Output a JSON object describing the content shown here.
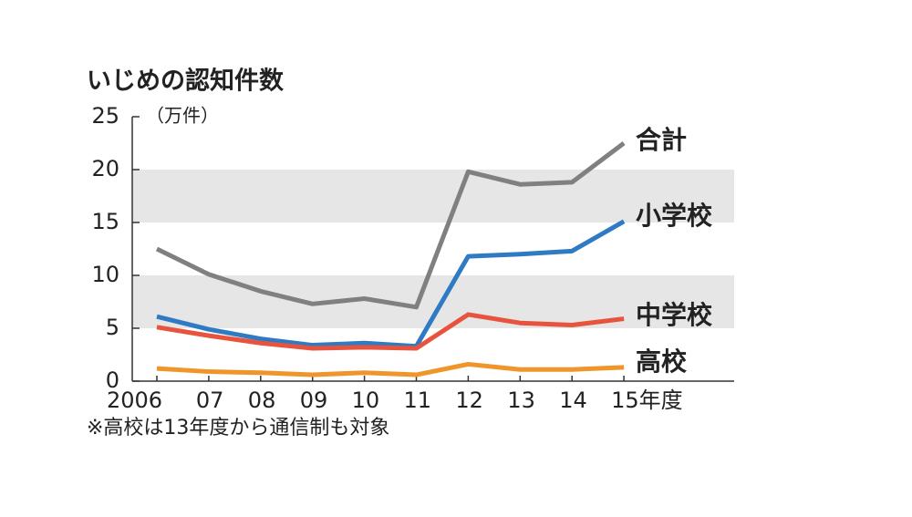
{
  "chart_data": {
    "type": "line",
    "title": "いじめの認知件数",
    "y_unit": "（万件）",
    "categories": [
      "2006",
      "07",
      "08",
      "09",
      "10",
      "11",
      "12",
      "13",
      "14",
      "15年度"
    ],
    "series": [
      {
        "name": "合計",
        "color": "#808080",
        "values": [
          12.5,
          10.1,
          8.5,
          7.3,
          7.8,
          7.0,
          19.8,
          18.6,
          18.8,
          22.5
        ]
      },
      {
        "name": "小学校",
        "color": "#2e7bc4",
        "values": [
          6.1,
          4.9,
          4.0,
          3.4,
          3.6,
          3.3,
          11.8,
          12.0,
          12.3,
          15.1
        ]
      },
      {
        "name": "中学校",
        "color": "#e8533e",
        "values": [
          5.1,
          4.3,
          3.6,
          3.1,
          3.2,
          3.1,
          6.3,
          5.5,
          5.3,
          5.9
        ]
      },
      {
        "name": "高校",
        "color": "#f0952a",
        "values": [
          1.2,
          0.9,
          0.8,
          0.6,
          0.8,
          0.6,
          1.6,
          1.1,
          1.1,
          1.3
        ]
      }
    ],
    "ylim": [
      0,
      25
    ],
    "yticks": [
      0,
      5,
      10,
      15,
      20,
      25
    ],
    "banded_grid": true,
    "footnote": "※高校は13年度から通信制も対象"
  }
}
